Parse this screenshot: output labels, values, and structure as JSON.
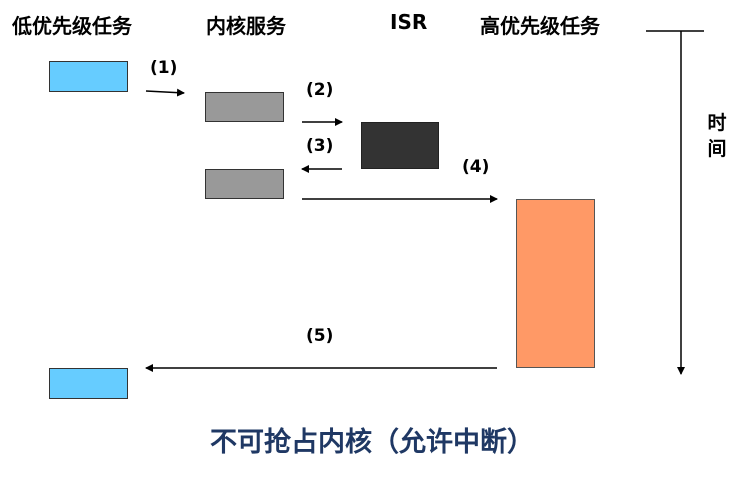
{
  "headers": {
    "low_task": "低优先级任务",
    "kernel_service": "内核服务",
    "isr": "ISR",
    "high_task": "高优先级任务"
  },
  "time_label": "时间",
  "steps": {
    "s1": "(1)",
    "s2": "(2)",
    "s3": "(3)",
    "s4": "(4)",
    "s5": "(5)"
  },
  "caption": "不可抢占内核（允许中断）",
  "colors": {
    "low_task": "#66ccff",
    "kernel_service": "#999999",
    "isr": "#333333",
    "high_task": "#ff9966",
    "caption": "#1f3864"
  }
}
